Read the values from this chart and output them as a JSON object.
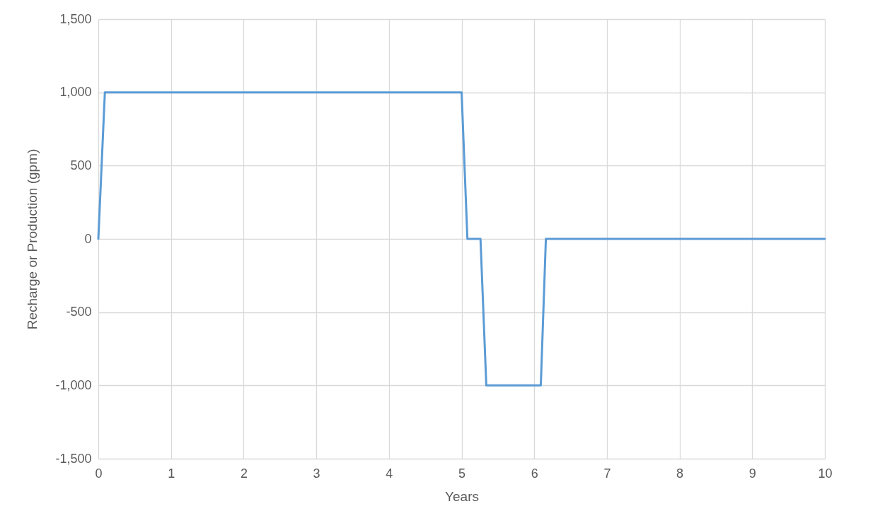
{
  "chart_data": {
    "type": "line",
    "xlabel": "Years",
    "ylabel": "Recharge or Production (gpm)",
    "x": [
      0,
      0.09,
      5,
      5.08,
      5.26,
      5.34,
      6.09,
      6.16,
      10
    ],
    "series": [
      {
        "color": "#5b9bd5",
        "values": [
          0,
          1000,
          1000,
          0,
          0,
          -1000,
          -1000,
          0,
          0
        ]
      }
    ],
    "xlim": [
      0,
      10
    ],
    "xticks": [
      0,
      1,
      2,
      3,
      4,
      5,
      6,
      7,
      8,
      9,
      10
    ],
    "ylim": [
      -1500,
      1500
    ],
    "yticks": [
      {
        "value": -1500,
        "label": "-1,500"
      },
      {
        "value": -1000,
        "label": "-1,000"
      },
      {
        "value": -500,
        "label": "-500"
      },
      0,
      500,
      {
        "value": 1000,
        "label": "1,000"
      },
      {
        "value": 1500,
        "label": "1,500"
      }
    ],
    "grid": true,
    "marker": "none",
    "line_style": "solid"
  }
}
